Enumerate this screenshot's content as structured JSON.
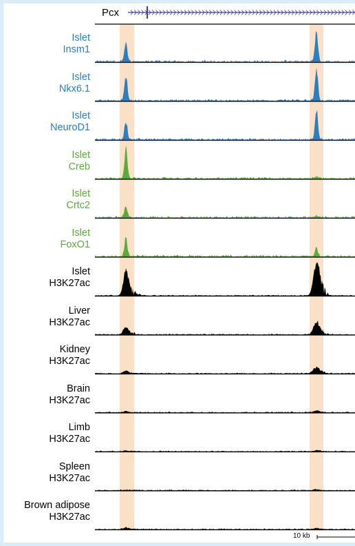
{
  "gene_track": {
    "gene": "Pcx"
  },
  "highlight_color": "#fbe0c8",
  "tracks": [
    {
      "id": "islet-insm1",
      "line1": "Islet",
      "line2": "Insm1",
      "color": "#2a7fc1"
    },
    {
      "id": "islet-nkx61",
      "line1": "Islet",
      "line2": "Nkx6.1",
      "color": "#2a7fc1"
    },
    {
      "id": "islet-neurod1",
      "line1": "Islet",
      "line2": "NeuroD1",
      "color": "#2a7fc1"
    },
    {
      "id": "islet-creb",
      "line1": "Islet",
      "line2": "Creb",
      "color": "#5aab3c"
    },
    {
      "id": "islet-crtc2",
      "line1": "Islet",
      "line2": "Crtc2",
      "color": "#5aab3c"
    },
    {
      "id": "islet-foxo1",
      "line1": "Islet",
      "line2": "FoxO1",
      "color": "#5aab3c"
    },
    {
      "id": "islet-h3k27ac",
      "line1": "Islet",
      "line2": "H3K27ac",
      "color": "#000000"
    },
    {
      "id": "liver-h3k27ac",
      "line1": "Liver",
      "line2": "H3K27ac",
      "color": "#000000"
    },
    {
      "id": "kidney-h3k27ac",
      "line1": "Kidney",
      "line2": "H3K27ac",
      "color": "#000000"
    },
    {
      "id": "brain-h3k27ac",
      "line1": "Brain",
      "line2": "H3K27ac",
      "color": "#000000"
    },
    {
      "id": "limb-h3k27ac",
      "line1": "Limb",
      "line2": "H3K27ac",
      "color": "#000000"
    },
    {
      "id": "spleen-h3k27ac",
      "line1": "Spleen",
      "line2": "H3K27ac",
      "color": "#000000"
    },
    {
      "id": "brown-adipose-h3k27ac",
      "line1": "Brown adipose",
      "line2": "H3K27ac",
      "color": "#000000"
    }
  ],
  "peaks": {
    "islet-insm1": [
      0.55,
      0.9
    ],
    "islet-nkx61": [
      0.7,
      1.0
    ],
    "islet-neurod1": [
      0.55,
      0.85
    ],
    "islet-creb": [
      0.9,
      0.05
    ],
    "islet-crtc2": [
      0.35,
      0.05
    ],
    "islet-foxo1": [
      0.55,
      0.25
    ],
    "islet-h3k27ac": [
      0.75,
      1.0
    ],
    "liver-h3k27ac": [
      0.22,
      0.35
    ],
    "kidney-h3k27ac": [
      0.08,
      0.18
    ],
    "brain-h3k27ac": [
      0.03,
      0.05
    ],
    "limb-h3k27ac": [
      0.02,
      0.03
    ],
    "spleen-h3k27ac": [
      0.01,
      0.02
    ],
    "brown-adipose-h3k27ac": [
      0.05,
      0.03
    ]
  },
  "scale_bar": {
    "label": "10 kb"
  }
}
